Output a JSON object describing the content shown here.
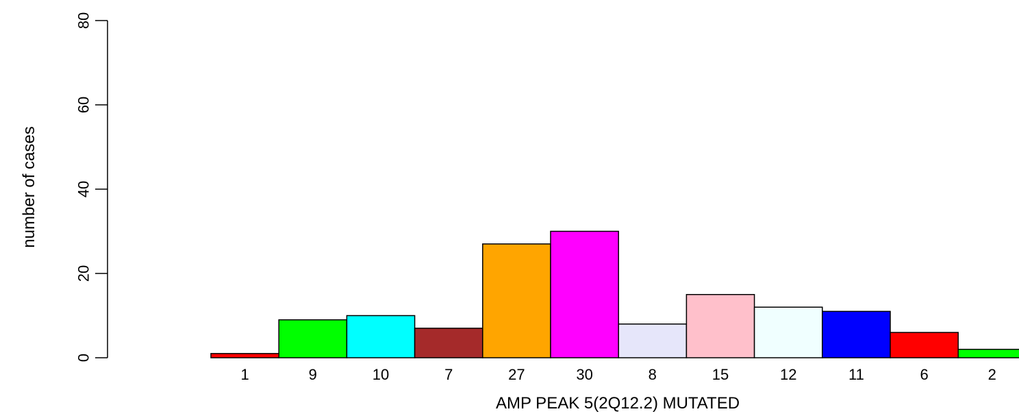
{
  "chart_data": {
    "type": "bar",
    "categories": [
      "1",
      "9",
      "10",
      "7",
      "27",
      "30",
      "8",
      "15",
      "12",
      "11",
      "6",
      "2"
    ],
    "values": [
      1,
      9,
      10,
      7,
      27,
      30,
      8,
      15,
      12,
      11,
      6,
      2
    ],
    "colors": [
      "#ff0000",
      "#00ff00",
      "#00ffff",
      "#a52a2a",
      "#ffa500",
      "#ff00ff",
      "#e6e6fa",
      "#ffc0cb",
      "#f0ffff",
      "#0000ff",
      "#ff0000",
      "#00ff00"
    ],
    "title": "",
    "xlabel": "AMP PEAK  5(2Q12.2) MUTATED",
    "ylabel": "number of cases",
    "ylim": [
      0,
      80
    ],
    "yticks": [
      "0",
      "20",
      "40",
      "60",
      "80"
    ],
    "grid": false
  }
}
